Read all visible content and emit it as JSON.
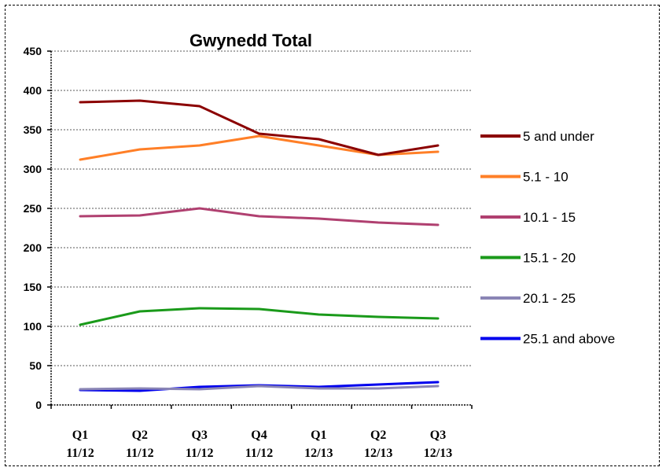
{
  "chart_data": {
    "type": "line",
    "title": "Gwynedd Total",
    "xlabel": "",
    "ylabel": "",
    "ylim": [
      0,
      450
    ],
    "yticks": [
      0,
      50,
      100,
      150,
      200,
      250,
      300,
      350,
      400,
      450
    ],
    "categories": [
      [
        "Q1",
        "11/12"
      ],
      [
        "Q2",
        "11/12"
      ],
      [
        "Q3",
        "11/12"
      ],
      [
        "Q4",
        "11/12"
      ],
      [
        "Q1",
        "12/13"
      ],
      [
        "Q2",
        "12/13"
      ],
      [
        "Q3",
        "12/13"
      ]
    ],
    "grid": true,
    "legend_position": "right",
    "series": [
      {
        "name": "5 and under",
        "color": "#8b0000",
        "values": [
          385,
          387,
          380,
          345,
          338,
          318,
          330
        ]
      },
      {
        "name": "5.1 - 10",
        "color": "#ff7f27",
        "values": [
          312,
          325,
          330,
          342,
          330,
          318,
          322
        ]
      },
      {
        "name": "10.1 - 15",
        "color": "#b04070",
        "values": [
          240,
          241,
          250,
          240,
          237,
          232,
          229
        ]
      },
      {
        "name": "15.1 - 20",
        "color": "#1a9a1a",
        "values": [
          102,
          119,
          123,
          122,
          115,
          112,
          110
        ]
      },
      {
        "name": "20.1 - 25",
        "color": "#8a85b5",
        "values": [
          20,
          21,
          20,
          24,
          21,
          21,
          24
        ]
      },
      {
        "name": "25.1 and above",
        "color": "#0000ee",
        "values": [
          19,
          18,
          23,
          25,
          23,
          26,
          29
        ]
      }
    ]
  }
}
